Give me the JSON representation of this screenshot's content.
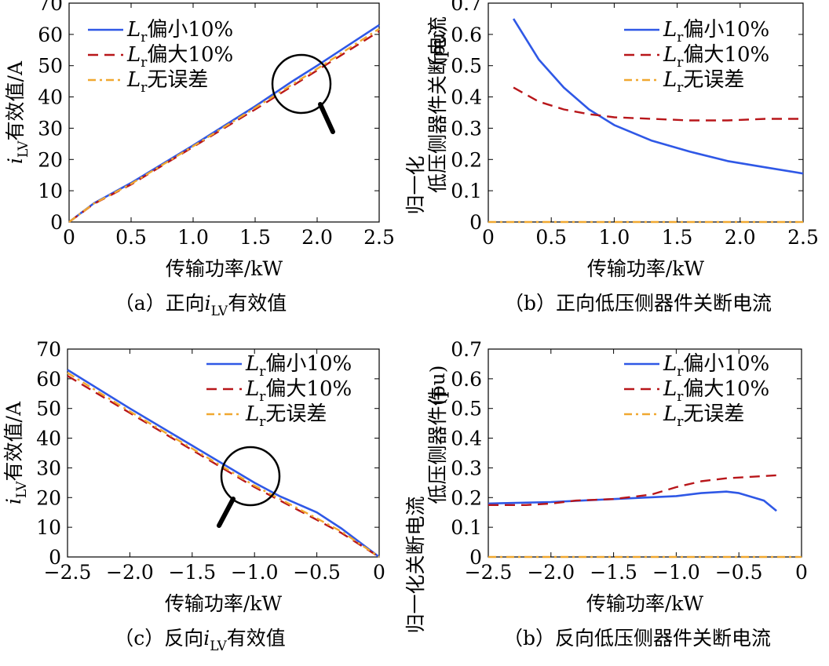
{
  "legend_labels": [
    "Lr偏小10%",
    "Lr偏大10%",
    "Lr无误差"
  ],
  "colors": {
    "small": "#2f58e6",
    "large": "#b8161a",
    "none": "#f0a830",
    "magnifier": "#000000"
  },
  "chart_data": [
    {
      "type": "line",
      "caption": "（a）正向iLV有效值",
      "xlabel": "传输功率/kW",
      "ylabel": "iLV有效值/A",
      "xlim": [
        0,
        2.5
      ],
      "ylim": [
        0,
        70
      ],
      "xticks": [
        "0",
        "0.5",
        "1.0",
        "1.5",
        "2.0",
        "2.5"
      ],
      "yticks": [
        "10",
        "20",
        "30",
        "40",
        "50",
        "60",
        "70"
      ],
      "legend_position": "top-left",
      "series": [
        {
          "name": "Lr偏小10%",
          "style": "solid",
          "x": [
            0.0,
            0.2,
            0.5,
            1.0,
            1.5,
            1.8,
            2.0,
            2.5
          ],
          "y": [
            0.0,
            6.0,
            12.5,
            24.5,
            37.0,
            45.0,
            50.0,
            63.0
          ]
        },
        {
          "name": "Lr偏大10%",
          "style": "dashed",
          "x": [
            0.0,
            0.2,
            0.5,
            1.0,
            1.5,
            2.0,
            2.5
          ],
          "y": [
            0.0,
            5.8,
            12.0,
            24.0,
            36.0,
            48.5,
            61.0
          ]
        },
        {
          "name": "Lr无误差",
          "style": "dashdot",
          "x": [
            0.0,
            0.2,
            0.5,
            1.0,
            1.5,
            2.0,
            2.5
          ],
          "y": [
            0.0,
            5.9,
            12.2,
            24.2,
            36.5,
            49.0,
            61.8
          ]
        }
      ]
    },
    {
      "type": "line",
      "caption": "（b）正向低压侧器件关断电流",
      "xlabel": "传输功率/kW",
      "ylabel": "低压侧器件关断电流",
      "ylabel2": "归一化",
      "yunit": "(pu)",
      "xlim": [
        0,
        2.5
      ],
      "ylim": [
        0,
        0.7
      ],
      "xticks": [
        "0",
        "0.5",
        "1.0",
        "1.5",
        "2.0",
        "2.5"
      ],
      "yticks": [
        "0.1",
        "0.2",
        "0.3",
        "0.4",
        "0.5",
        "0.6",
        "0.7"
      ],
      "legend_position": "top-right",
      "series": [
        {
          "name": "Lr偏小10%",
          "style": "solid",
          "x": [
            0.2,
            0.4,
            0.6,
            0.8,
            1.0,
            1.3,
            1.6,
            1.9,
            2.2,
            2.5
          ],
          "y": [
            0.65,
            0.52,
            0.43,
            0.36,
            0.31,
            0.26,
            0.225,
            0.195,
            0.175,
            0.155
          ]
        },
        {
          "name": "Lr偏大10%",
          "style": "dashed",
          "x": [
            0.2,
            0.4,
            0.6,
            0.8,
            1.0,
            1.3,
            1.6,
            1.9,
            2.2,
            2.5
          ],
          "y": [
            0.43,
            0.385,
            0.36,
            0.345,
            0.335,
            0.33,
            0.325,
            0.325,
            0.33,
            0.33
          ]
        },
        {
          "name": "Lr无误差",
          "style": "dashdot",
          "x": [
            0.0,
            2.5
          ],
          "y": [
            0.0,
            0.0
          ]
        }
      ]
    },
    {
      "type": "line",
      "caption": "（c）反向iLV有效值",
      "xlabel": "传输功率/kW",
      "ylabel": "iLV有效值/A",
      "xlim": [
        -2.5,
        0
      ],
      "ylim": [
        0,
        70
      ],
      "xticks": [
        "−2.5",
        "−2.0",
        "−1.5",
        "−1.0",
        "−0.5",
        "0"
      ],
      "yticks": [
        "0",
        "10",
        "20",
        "30",
        "40",
        "50",
        "60",
        "70"
      ],
      "legend_position": "top-right",
      "series": [
        {
          "name": "Lr偏小10%",
          "style": "solid",
          "x": [
            -2.5,
            -2.0,
            -1.5,
            -1.0,
            -0.8,
            -0.5,
            -0.3,
            0.0
          ],
          "y": [
            63.0,
            50.0,
            37.5,
            25.0,
            20.5,
            15.0,
            9.5,
            0.0
          ]
        },
        {
          "name": "Lr偏大10%",
          "style": "dashed",
          "x": [
            -2.5,
            -2.0,
            -1.5,
            -1.0,
            -0.5,
            -0.3,
            0.0
          ],
          "y": [
            61.0,
            48.5,
            36.0,
            23.5,
            12.5,
            8.0,
            0.0
          ]
        },
        {
          "name": "Lr无误差",
          "style": "dashdot",
          "x": [
            -2.5,
            -2.0,
            -1.5,
            -1.0,
            -0.5,
            -0.3,
            0.0
          ],
          "y": [
            62.0,
            49.0,
            36.5,
            24.0,
            13.0,
            8.5,
            0.0
          ]
        }
      ]
    },
    {
      "type": "line",
      "caption": "（b）反向低压侧器件关断电流",
      "xlabel": "传输功率/kW",
      "ylabel": "低压侧器件件",
      "ylabel2": "归一化关断电流",
      "yunit": "(pu)",
      "xlim": [
        -2.5,
        0
      ],
      "ylim": [
        0,
        0.7
      ],
      "xticks": [
        "−2.5",
        "−2.0",
        "−1.5",
        "−1.0",
        "−0.5",
        "0"
      ],
      "yticks": [
        "0",
        "0.1",
        "0.2",
        "0.3",
        "0.4",
        "0.5",
        "0.6",
        "0.7"
      ],
      "legend_position": "top-right",
      "series": [
        {
          "name": "Lr偏小10%",
          "style": "solid",
          "x": [
            -2.5,
            -2.0,
            -1.5,
            -1.0,
            -0.8,
            -0.6,
            -0.5,
            -0.3,
            -0.2
          ],
          "y": [
            0.18,
            0.185,
            0.195,
            0.205,
            0.215,
            0.22,
            0.215,
            0.19,
            0.155
          ]
        },
        {
          "name": "Lr偏大10%",
          "style": "dashed",
          "x": [
            -2.5,
            -2.2,
            -2.0,
            -1.8,
            -1.5,
            -1.2,
            -1.0,
            -0.8,
            -0.6,
            -0.4,
            -0.2
          ],
          "y": [
            0.175,
            0.175,
            0.18,
            0.19,
            0.195,
            0.21,
            0.235,
            0.255,
            0.265,
            0.27,
            0.275
          ]
        },
        {
          "name": "Lr无误差",
          "style": "dashdot",
          "x": [
            -2.5,
            0.0
          ],
          "y": [
            0.0,
            0.0
          ]
        }
      ]
    }
  ]
}
